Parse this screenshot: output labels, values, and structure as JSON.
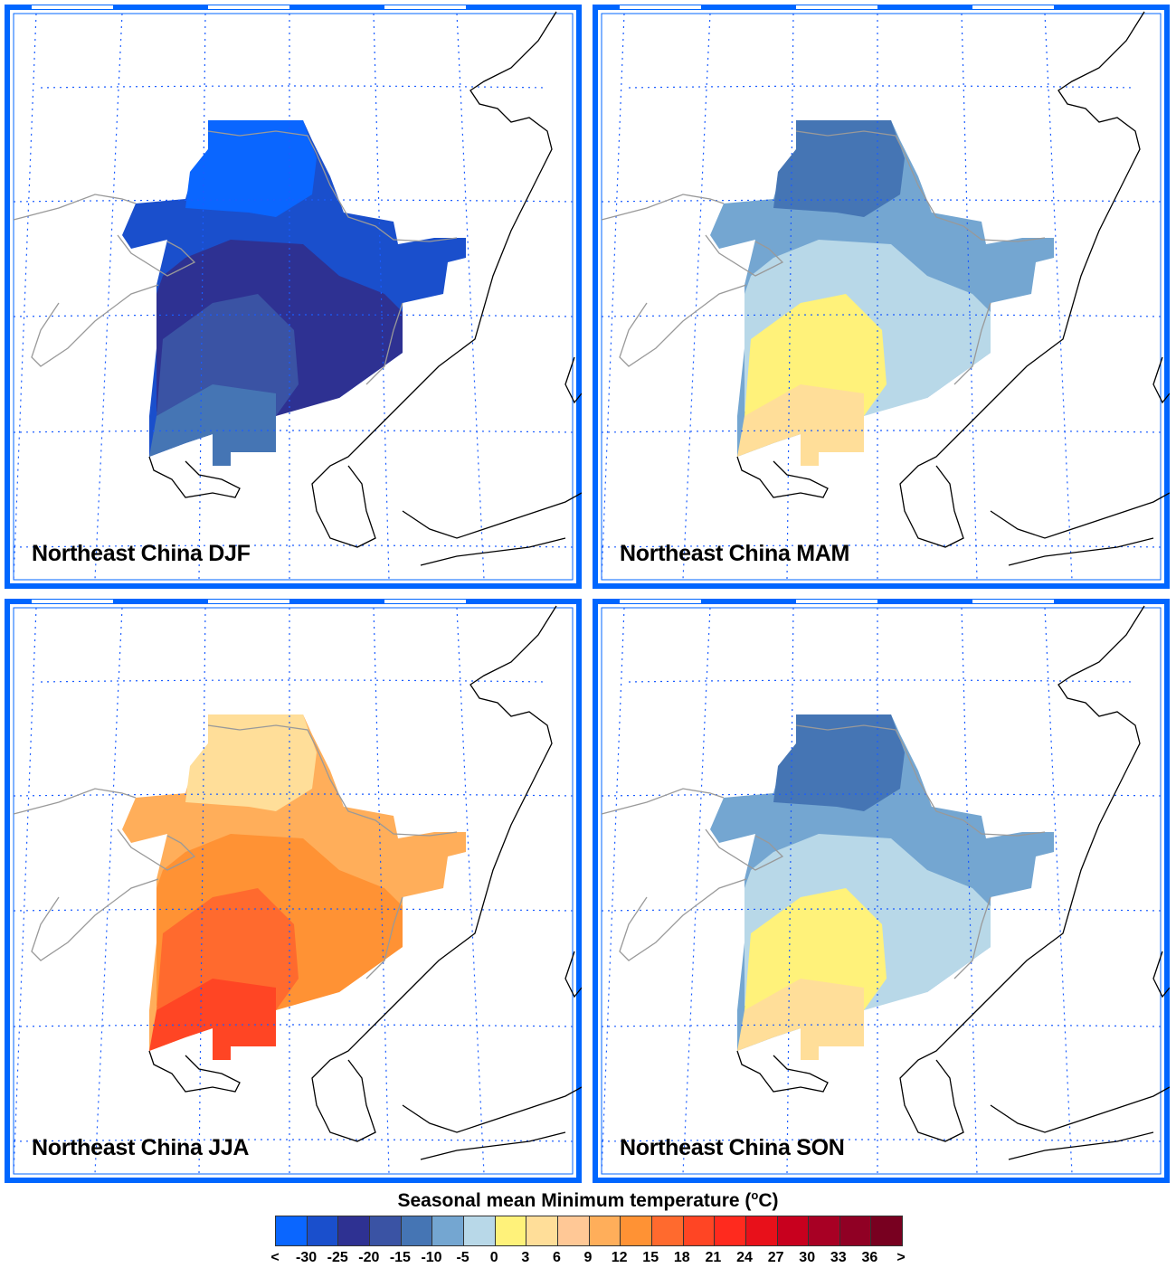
{
  "panels": [
    {
      "title": "Northeast China DJF",
      "season": "DJF",
      "layers": [
        1,
        0,
        2,
        3,
        4
      ]
    },
    {
      "title": "Northeast China MAM",
      "season": "MAM",
      "layers": [
        5,
        4,
        6,
        7,
        8
      ]
    },
    {
      "title": "Northeast China JJA",
      "season": "JJA",
      "layers": [
        10,
        8,
        11,
        12,
        13
      ]
    },
    {
      "title": "Northeast China SON",
      "season": "SON",
      "layers": [
        5,
        4,
        6,
        7,
        8
      ]
    }
  ],
  "colorbar": {
    "title": "Seasonal mean Minimum temperature (",
    "unit_sup": "o",
    "unit": "C)",
    "labels": [
      "<",
      "-30",
      "-25",
      "-20",
      "-15",
      "-10",
      "-5",
      "0",
      "3",
      "6",
      "9",
      "12",
      "15",
      "18",
      "21",
      "24",
      "27",
      "30",
      "33",
      "36",
      ">"
    ],
    "colors": [
      "#0a66ff",
      "#1a4fcc",
      "#2e3192",
      "#3a53a4",
      "#4575b4",
      "#74a6d1",
      "#b8d8e8",
      "#fff27a",
      "#ffde99",
      "#ffc896",
      "#ffae5a",
      "#ff9234",
      "#ff6a2e",
      "#ff4524",
      "#ff2a1e",
      "#e8101a",
      "#c8001e",
      "#a80024",
      "#900024",
      "#780020"
    ]
  },
  "colors": {
    "frame": "#0066ff",
    "grid": "#1a5cff",
    "coast": "#000000",
    "border": "#999999"
  }
}
